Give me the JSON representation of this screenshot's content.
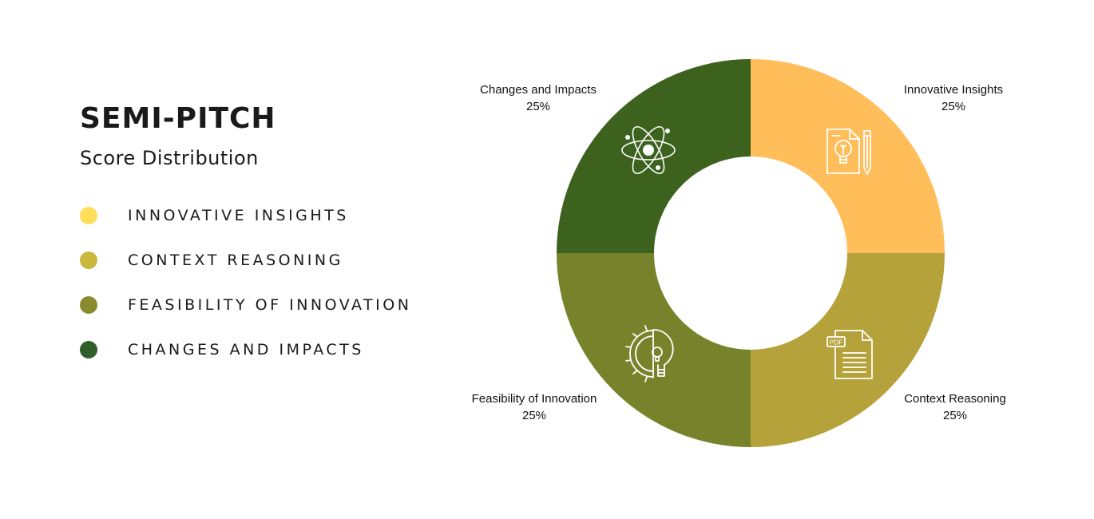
{
  "header": {
    "title": "SEMI-PITCH",
    "subtitle": "Score Distribution"
  },
  "legend": {
    "items": [
      {
        "label": "INNOVATIVE INSIGHTS",
        "color": "#ffde59"
      },
      {
        "label": "CONTEXT REASONING",
        "color": "#c9b83b"
      },
      {
        "label": "FEASIBILITY OF INNOVATION",
        "color": "#8a8a2e"
      },
      {
        "label": "CHANGES AND IMPACTS",
        "color": "#2f5f2a"
      }
    ]
  },
  "chart_data": {
    "type": "pie",
    "donut": true,
    "title": "SEMI-PITCH",
    "subtitle": "Score Distribution",
    "legend_position": "left",
    "categories": [
      "Innovative Insights",
      "Context Reasoning",
      "Feasibility of Innovation",
      "Changes and Impacts"
    ],
    "values": [
      25,
      25,
      25,
      25
    ],
    "unit": "%",
    "slices": [
      {
        "name": "Innovative Insights",
        "value": 25,
        "label": "25%",
        "color": "#ffbe5a",
        "icon": "lightbulb-document-icon"
      },
      {
        "name": "Context Reasoning",
        "value": 25,
        "label": "25%",
        "color": "#b5a23b",
        "icon": "pdf-document-icon"
      },
      {
        "name": "Feasibility of Innovation",
        "value": 25,
        "label": "25%",
        "color": "#77832b",
        "icon": "gear-lightbulb-icon"
      },
      {
        "name": "Changes and Impacts",
        "value": 25,
        "label": "25%",
        "color": "#3c621e",
        "icon": "atom-icon"
      }
    ]
  }
}
